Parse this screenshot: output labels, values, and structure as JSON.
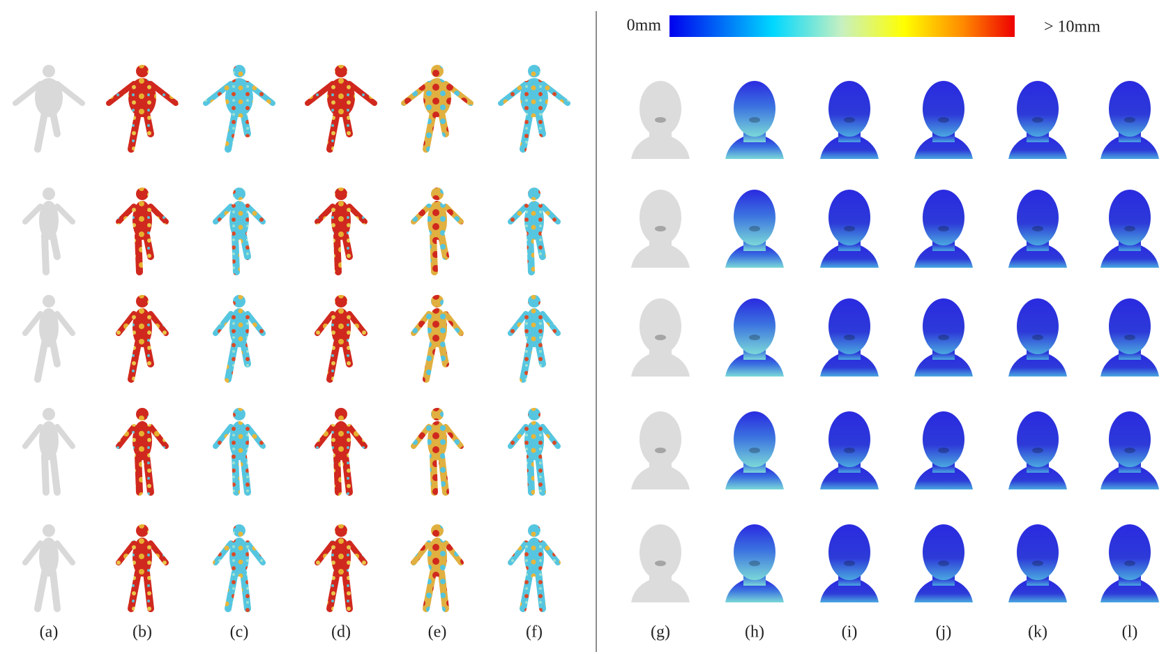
{
  "colorbar": {
    "min_label": "0mm",
    "max_label": "> 10mm"
  },
  "body_columns": [
    "(a)",
    "(b)",
    "(c)",
    "(d)",
    "(e)",
    "(f)"
  ],
  "head_columns": [
    "(g)",
    "(h)",
    "(i)",
    "(j)",
    "(k)",
    "(l)"
  ]
}
